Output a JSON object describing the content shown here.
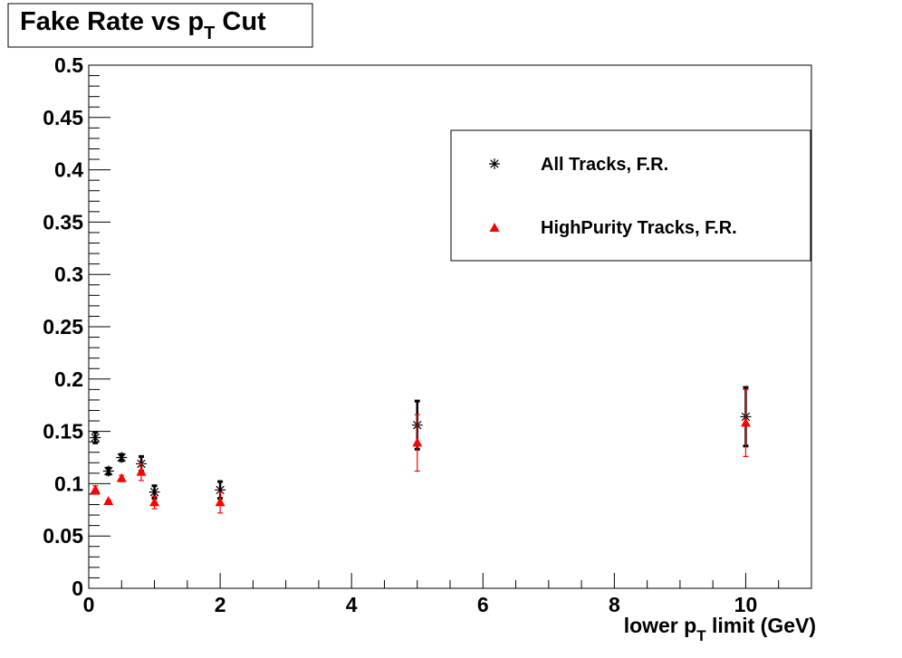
{
  "chart_data": {
    "type": "scatter",
    "title": "Fake Rate vs p",
    "title_sub": "T",
    "title_suffix": " Cut",
    "xlabel": "lower p",
    "xlabel_sub": "T",
    "xlabel_suffix": " limit (GeV)",
    "ylabel": "",
    "xlim": [
      0,
      11
    ],
    "ylim": [
      0,
      0.5
    ],
    "xticks": [
      0,
      2,
      4,
      6,
      8,
      10
    ],
    "xtick_labels": [
      "0",
      "2",
      "4",
      "6",
      "8",
      "10"
    ],
    "yticks": [
      0,
      0.05,
      0.1,
      0.15,
      0.2,
      0.25,
      0.3,
      0.35,
      0.4,
      0.45,
      0.5
    ],
    "ytick_labels": [
      "0",
      "0.05",
      "0.1",
      "0.15",
      "0.2",
      "0.25",
      "0.3",
      "0.35",
      "0.4",
      "0.45",
      "0.5"
    ],
    "grid": false,
    "legend_placement": "top-right",
    "series": [
      {
        "name": "All Tracks, F.R.",
        "marker": "asterisk",
        "color": "#000000",
        "x": [
          0.1,
          0.3,
          0.5,
          0.8,
          1,
          2,
          5,
          10
        ],
        "y": [
          0.144,
          0.112,
          0.125,
          0.119,
          0.092,
          0.094,
          0.156,
          0.164
        ],
        "yerr": [
          0.005,
          0.003,
          0.003,
          0.007,
          0.006,
          0.008,
          0.023,
          0.028
        ]
      },
      {
        "name": "HighPurity Tracks, F.R.",
        "marker": "triangle",
        "color": "#ff0000",
        "x": [
          0.1,
          0.3,
          0.5,
          0.8,
          1,
          2,
          5,
          10
        ],
        "y": [
          0.094,
          0.083,
          0.105,
          0.111,
          0.082,
          0.082,
          0.139,
          0.158
        ],
        "yerr": [
          0.004,
          0.001,
          0.003,
          0.008,
          0.006,
          0.01,
          0.027,
          0.032
        ]
      }
    ]
  }
}
